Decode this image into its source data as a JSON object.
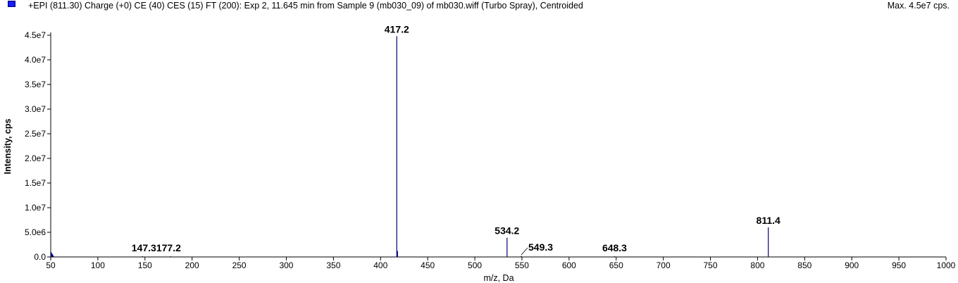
{
  "header": {
    "title": "+EPI (811.30) Charge (+0) CE (40) CES (15) FT (200): Exp 2, 11.645 min from Sample 9 (mb030_09) of mb030.wiff (Turbo Spray), Centroided",
    "max_label": "Max. 4.5e7 cps.",
    "legend_color": "#1a1aff"
  },
  "chart_data": {
    "type": "bar",
    "title": "+EPI (811.30) Charge (+0) CE (40) CES (15) FT (200): Exp 2, 11.645 min from Sample 9 (mb030_09) of mb030.wiff (Turbo Spray), Centroided",
    "xlabel": "m/z, Da",
    "ylabel": "Intensity, cps",
    "xlim": [
      50,
      1000
    ],
    "ylim": [
      0,
      45000000
    ],
    "grid": false,
    "bar_color": "#00007a",
    "x_ticks": [
      50,
      100,
      150,
      200,
      250,
      300,
      350,
      400,
      450,
      500,
      550,
      600,
      650,
      700,
      750,
      800,
      850,
      900,
      950,
      1000
    ],
    "y_ticks": [
      {
        "value": 0,
        "label": "0.0"
      },
      {
        "value": 5000000,
        "label": "5.0e6"
      },
      {
        "value": 10000000,
        "label": "1.0e7"
      },
      {
        "value": 15000000,
        "label": "1.5e7"
      },
      {
        "value": 20000000,
        "label": "2.0e7"
      },
      {
        "value": 25000000,
        "label": "2.5e7"
      },
      {
        "value": 30000000,
        "label": "3.0e7"
      },
      {
        "value": 35000000,
        "label": "3.5e7"
      },
      {
        "value": 40000000,
        "label": "4.0e7"
      },
      {
        "value": 45000000,
        "label": "4.5e7"
      }
    ],
    "peaks": [
      {
        "mz": 51.0,
        "intensity": 600000
      },
      {
        "mz": 147.3,
        "intensity": 80000
      },
      {
        "mz": 177.2,
        "intensity": 60000
      },
      {
        "mz": 417.2,
        "intensity": 44800000
      },
      {
        "mz": 418.0,
        "intensity": 1200000
      },
      {
        "mz": 534.2,
        "intensity": 3900000
      },
      {
        "mz": 549.3,
        "intensity": 200000
      },
      {
        "mz": 648.3,
        "intensity": 50000
      },
      {
        "mz": 811.4,
        "intensity": 6000000
      }
    ],
    "labels": [
      {
        "text": "417.2",
        "mz": 417.2,
        "intensity": 44800000
      },
      {
        "text": "534.2",
        "mz": 534.2,
        "intensity": 3900000
      },
      {
        "text": "549.3",
        "mz": 549.3,
        "intensity": 200000
      },
      {
        "text": "648.3",
        "mz": 648.3,
        "intensity": 50000
      },
      {
        "text": "811.4",
        "mz": 811.4,
        "intensity": 6000000
      },
      {
        "text": "147.3177.2",
        "mz": 162.0,
        "intensity": 60000
      }
    ]
  }
}
